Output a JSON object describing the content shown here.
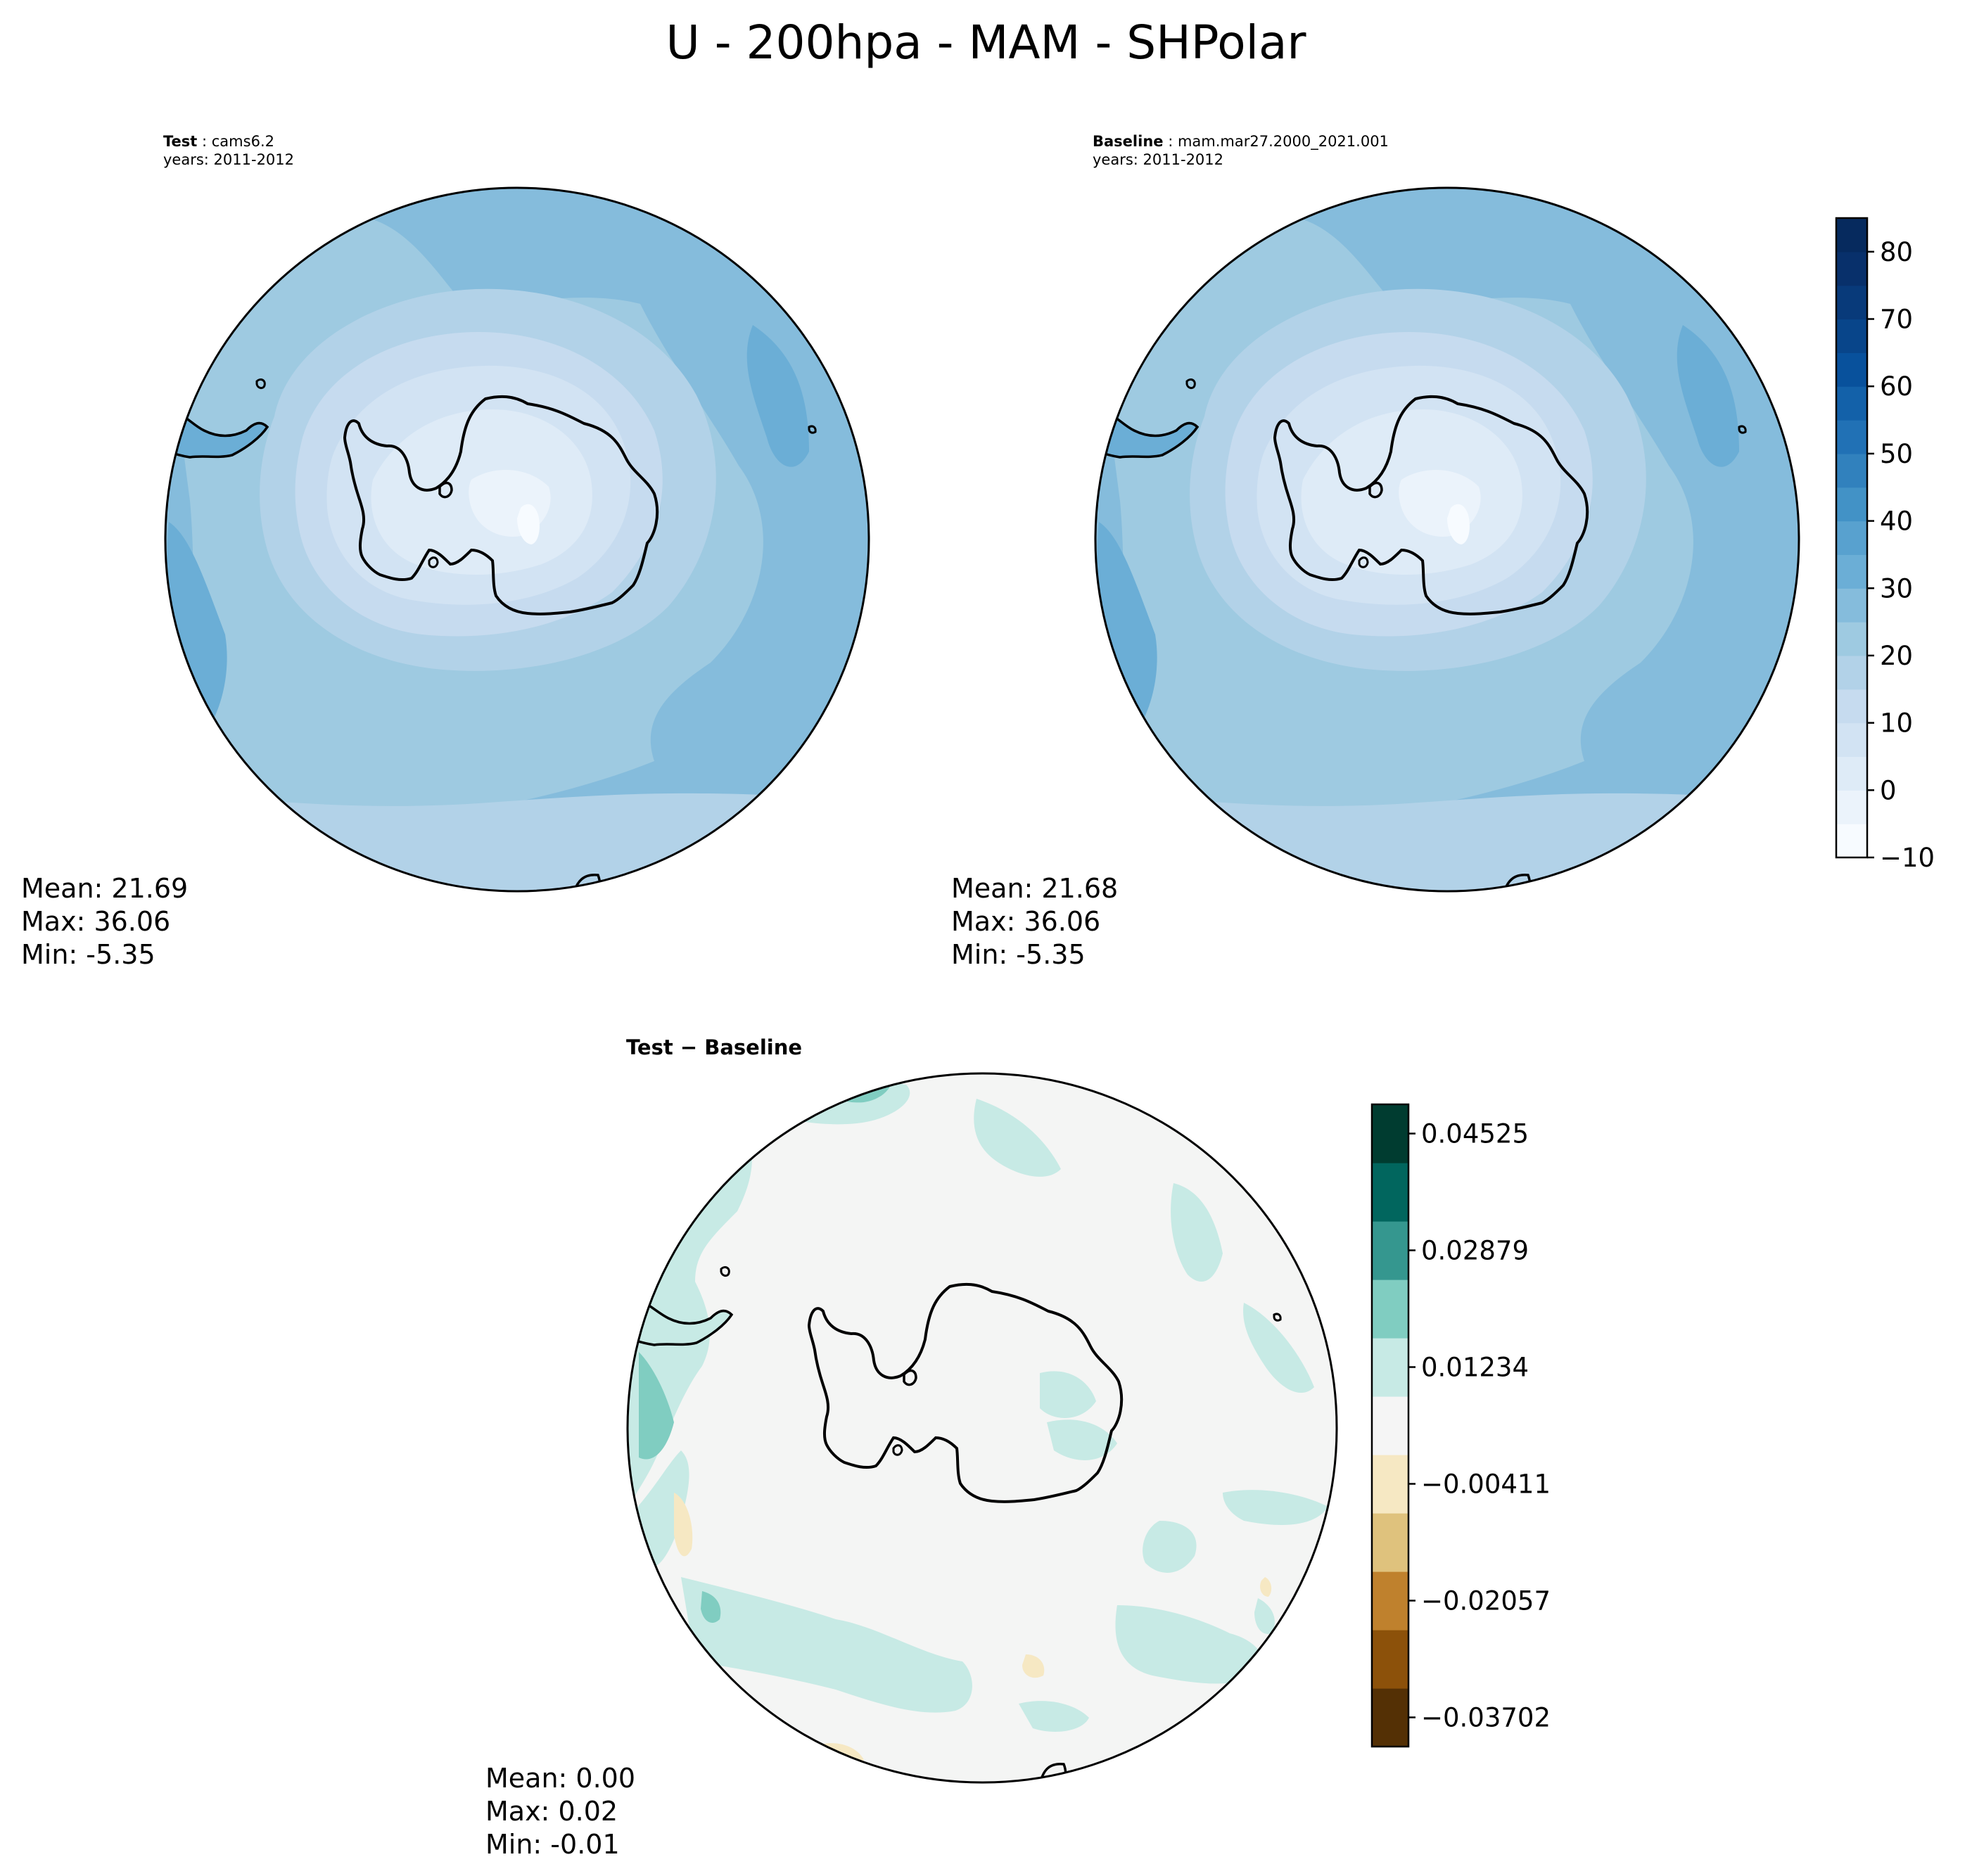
{
  "figure": {
    "title": "U - 200hpa - MAM - SHPolar"
  },
  "panels": {
    "test": {
      "label": "Test",
      "name": "cams6.2",
      "years": "years: 2011-2012",
      "stats": {
        "mean": "Mean: 21.69",
        "max": "Max: 36.06",
        "min": "Min: -5.35"
      }
    },
    "baseline": {
      "label": "Baseline",
      "name": "mam.mar27.2000_2021.001",
      "years": "years: 2011-2012",
      "stats": {
        "mean": "Mean: 21.68",
        "max": "Max: 36.06",
        "min": "Min: -5.35"
      }
    },
    "diff": {
      "title": "Test − Baseline",
      "stats": {
        "mean": "Mean:  0.00",
        "max": "Max:  0.02",
        "min": "Min: -0.01"
      }
    }
  },
  "colorbars": {
    "main": {
      "ticks": [
        "−10",
        "0",
        "10",
        "20",
        "30",
        "40",
        "50",
        "60",
        "70",
        "80"
      ],
      "range": [
        -10,
        85
      ],
      "step": 5,
      "colormap": "Blues",
      "colors": [
        "#f7fbff",
        "#ebf3fb",
        "#deebf7",
        "#d2e3f3",
        "#c6dbef",
        "#b2d2e8",
        "#9ecae1",
        "#85bcdc",
        "#6baed6",
        "#58a1cf",
        "#4292c6",
        "#3181bd",
        "#2171b5",
        "#1361a9",
        "#08519c",
        "#08458a",
        "#083a7a",
        "#08306b",
        "#062a5e"
      ]
    },
    "diff": {
      "ticks": [
        "0.04525",
        "0.02879",
        "0.01234",
        "−0.00411",
        "−0.02057",
        "−0.03702"
      ],
      "colormap": "BrBG",
      "colors": [
        "#543005",
        "#8c510a",
        "#bf812d",
        "#dfc27d",
        "#f6e8c3",
        "#f5f5f5",
        "#c7eae5",
        "#80cdc1",
        "#35978f",
        "#01665e",
        "#003c30"
      ]
    }
  }
}
